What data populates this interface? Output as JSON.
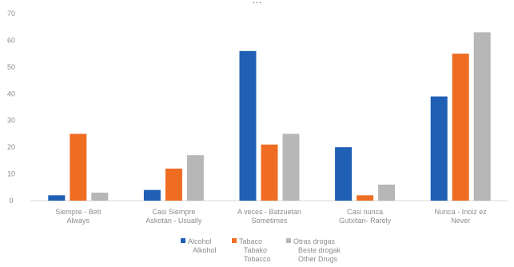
{
  "chart_data": {
    "type": "bar",
    "title": "…",
    "categories": [
      [
        "Siempre - Beti",
        "Always"
      ],
      [
        "Casi Siempre",
        "Askotan - Usually"
      ],
      [
        "A veces - Batzuetan",
        "Sometimes"
      ],
      [
        "Casi nunca",
        "Gutxitan- Rarely"
      ],
      [
        "Nunca - Inoiz ez",
        "Never"
      ]
    ],
    "series": [
      {
        "name": [
          "Alcohol",
          "Alkohol"
        ],
        "color": "#1f5fb4",
        "values": [
          2,
          4,
          56,
          20,
          39
        ]
      },
      {
        "name": [
          "Tabaco",
          "Tabako",
          "Tobacco"
        ],
        "color": "#ef6c23",
        "values": [
          25,
          12,
          21,
          2,
          55
        ]
      },
      {
        "name": [
          "Otras drogas",
          "Beste drogak",
          "Other Drugs"
        ],
        "color": "#b7b7b7",
        "values": [
          3,
          17,
          25,
          6,
          63
        ]
      }
    ],
    "ylim": [
      0,
      70
    ],
    "yticks": [
      0,
      10,
      20,
      30,
      40,
      50,
      60,
      70
    ],
    "grid": false,
    "legend": "bottom"
  }
}
